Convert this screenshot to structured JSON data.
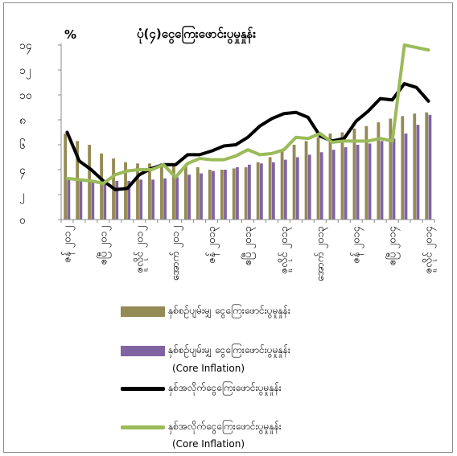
{
  "chart_data": {
    "type": "bar+line",
    "title": "ပုံ(၄)ငွေကြေးဖောင်းပွမှုနှုန်း",
    "ylabel": "%",
    "ylim": [
      0,
      14
    ],
    "yticks": [
      "၀",
      "၂",
      "၄",
      "၆",
      "၈",
      "၁၀",
      "၁၂",
      "၁၄"
    ],
    "xtick_labels": [
      "ဇန် ၂၀၁၂",
      "ဧပြီ ၂၀၁၂",
      "ဇူလိုင် ၂၀၁၂",
      "အောက် ၂၀၁၂",
      "ဇန် ၂၀၁၃",
      "ဧပြီ ၂၀၁၃",
      "ဇူလိုင် ၂၀၁၃",
      "အောက် ၂၀၁၃",
      "ဇန် ၂၀၁၄",
      "ဧပြီ ၂၀၁၄",
      "ဇူလိုင် ၂၀၁၄"
    ],
    "n_points": 31,
    "series": [
      {
        "name": "နှစ်စဉ်ပျမ်းမျှ ငွေကြေးဖောင်းပွမှုနှုန်း",
        "kind": "bar",
        "color": "#948a54",
        "values": [
          6.9,
          6.3,
          6.0,
          5.3,
          4.9,
          4.6,
          4.5,
          4.5,
          4.5,
          4.5,
          4.4,
          4.2,
          4.0,
          4.0,
          4.1,
          4.2,
          4.6,
          5.0,
          5.6,
          6.0,
          6.3,
          6.6,
          6.9,
          7.0,
          7.3,
          7.5,
          7.8,
          8.1,
          8.3,
          8.5,
          8.6
        ]
      },
      {
        "name": "နှစ်စဉ်ပျမ်းမျှ ငွေကြေးဖောင်းပွမှုနှုန်း",
        "subtitle": "(Core Inflation)",
        "kind": "bar",
        "color": "#8064a2",
        "values": [
          3.2,
          3.2,
          3.1,
          3.1,
          3.1,
          3.1,
          3.2,
          3.2,
          3.3,
          3.4,
          3.6,
          3.7,
          3.9,
          4.0,
          4.2,
          4.4,
          4.5,
          4.6,
          4.8,
          5.0,
          5.2,
          5.4,
          5.6,
          5.8,
          6.0,
          6.1,
          6.3,
          6.5,
          6.9,
          7.6,
          8.4
        ]
      },
      {
        "name": "နှစ်အလိုက်ငွေကြေးဖောင်းပွမှုနှုန်း",
        "kind": "line",
        "color": "#000000",
        "values": [
          7.0,
          4.7,
          4.0,
          3.1,
          2.4,
          2.5,
          3.6,
          4.1,
          4.4,
          4.4,
          5.2,
          5.2,
          5.5,
          5.9,
          6.0,
          6.6,
          7.5,
          8.1,
          8.5,
          8.6,
          8.2,
          6.7,
          6.3,
          6.5,
          7.9,
          8.7,
          9.7,
          9.6,
          10.9,
          10.6,
          9.5
        ]
      },
      {
        "name": "နှစ်အလိုက်ငွေကြေးဖောင်းပွမှုနှုန်း",
        "subtitle": "(Core  Inflation)",
        "kind": "line",
        "color": "#9bbb59",
        "values": [
          3.3,
          3.2,
          3.1,
          2.9,
          3.6,
          3.9,
          4.0,
          4.0,
          4.4,
          3.4,
          4.5,
          4.9,
          4.8,
          4.8,
          5.1,
          5.6,
          5.2,
          5.3,
          5.6,
          6.6,
          6.5,
          6.9,
          6.2,
          6.3,
          6.3,
          6.3,
          6.5,
          6.3,
          14.0,
          13.8,
          13.6
        ]
      }
    ],
    "grid": false,
    "legend_position": "bottom"
  }
}
